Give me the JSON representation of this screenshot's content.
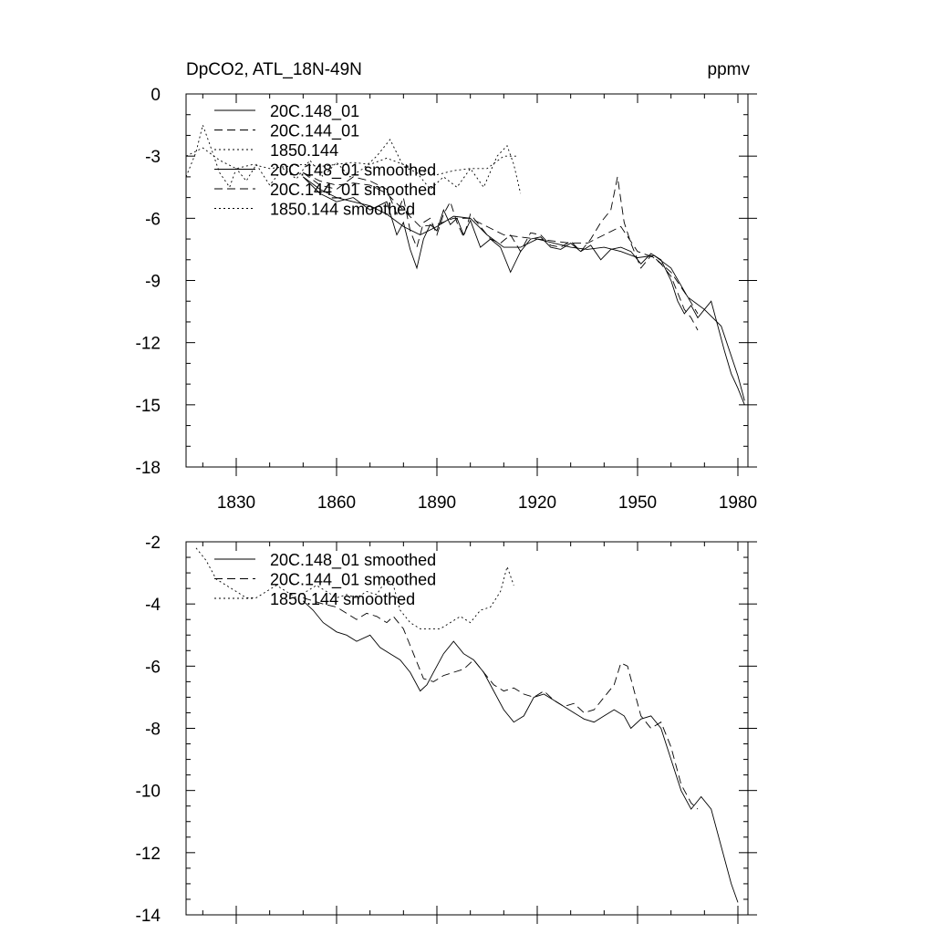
{
  "chart_data": [
    {
      "type": "line",
      "title": "DpCO2, ATL_18N-49N",
      "units": "ppmv",
      "xlim": [
        1815,
        1983
      ],
      "ylim": [
        -18,
        0
      ],
      "xticks": [
        1830,
        1860,
        1890,
        1920,
        1950,
        1980
      ],
      "xtick_labels": [
        "1830",
        "1860",
        "1890",
        "1920",
        "1950",
        "1980"
      ],
      "yticks": [
        0,
        -3,
        -6,
        -9,
        -12,
        -15,
        -18
      ],
      "ytick_labels": [
        "0",
        "-3",
        "-6",
        "-9",
        "-12",
        "-15",
        "-18"
      ],
      "legend": [
        "20C.148_01",
        "20C.144_01",
        "1850.144",
        "20C.148_01 smoothed",
        "20C.144_01 smoothed",
        "1850.144 smoothed"
      ],
      "series": [
        {
          "name": "20C.148_01",
          "style": "solid",
          "x": [
            1850,
            1855,
            1860,
            1865,
            1870,
            1875,
            1878,
            1880,
            1882,
            1884,
            1886,
            1888,
            1890,
            1892,
            1894,
            1896,
            1898,
            1900,
            1903,
            1906,
            1909,
            1912,
            1915,
            1918,
            1921,
            1924,
            1927,
            1930,
            1933,
            1936,
            1939,
            1942,
            1945,
            1948,
            1951,
            1954,
            1957,
            1960,
            1962,
            1964,
            1966,
            1968,
            1970,
            1972,
            1974,
            1976,
            1978,
            1980,
            1982
          ],
          "y": [
            -4.0,
            -4.8,
            -5.2,
            -5.0,
            -5.6,
            -5.2,
            -6.8,
            -6.2,
            -7.5,
            -8.4,
            -7.0,
            -6.3,
            -6.6,
            -5.6,
            -6.3,
            -6.0,
            -6.8,
            -6.1,
            -7.4,
            -7.0,
            -7.4,
            -8.6,
            -7.6,
            -7.0,
            -6.9,
            -7.4,
            -7.5,
            -7.2,
            -7.6,
            -7.3,
            -8.0,
            -7.5,
            -7.4,
            -7.6,
            -8.2,
            -7.7,
            -8.0,
            -9.0,
            -10.0,
            -10.6,
            -10.2,
            -10.8,
            -10.4,
            -10.0,
            -11.2,
            -12.4,
            -13.5,
            -14.2,
            -15.0
          ]
        },
        {
          "name": "20C.144_01",
          "style": "dash",
          "x": [
            1850,
            1855,
            1860,
            1865,
            1870,
            1875,
            1878,
            1880,
            1882,
            1884,
            1886,
            1888,
            1890,
            1892,
            1894,
            1896,
            1898,
            1900,
            1903,
            1906,
            1909,
            1912,
            1915,
            1918,
            1921,
            1924,
            1927,
            1930,
            1933,
            1936,
            1939,
            1942,
            1944,
            1946,
            1948,
            1951,
            1954,
            1957,
            1960,
            1962,
            1964,
            1966,
            1968
          ],
          "y": [
            -3.8,
            -4.4,
            -4.6,
            -4.0,
            -4.2,
            -4.6,
            -5.8,
            -5.0,
            -6.6,
            -7.4,
            -6.2,
            -6.0,
            -6.8,
            -5.8,
            -5.2,
            -6.2,
            -6.9,
            -5.8,
            -6.4,
            -7.0,
            -7.2,
            -6.8,
            -7.6,
            -6.7,
            -6.8,
            -7.3,
            -7.4,
            -7.1,
            -7.6,
            -7.0,
            -6.2,
            -5.6,
            -4.0,
            -6.2,
            -7.2,
            -8.4,
            -7.8,
            -8.2,
            -8.8,
            -9.6,
            -10.4,
            -10.8,
            -11.4
          ]
        },
        {
          "name": "1850.144",
          "style": "dot",
          "x": [
            1815,
            1818,
            1820,
            1822,
            1825,
            1828,
            1830,
            1833,
            1836,
            1840,
            1844,
            1848,
            1852,
            1856,
            1860,
            1864,
            1868,
            1872,
            1876,
            1880,
            1884,
            1888,
            1892,
            1896,
            1900,
            1904,
            1908,
            1911,
            1913,
            1915
          ],
          "y": [
            -4.0,
            -2.8,
            -1.5,
            -2.4,
            -3.8,
            -4.5,
            -3.6,
            -4.2,
            -3.4,
            -4.4,
            -3.6,
            -4.1,
            -3.2,
            -4.0,
            -3.3,
            -4.0,
            -3.6,
            -3.0,
            -2.2,
            -3.5,
            -3.8,
            -4.6,
            -4.0,
            -4.5,
            -3.6,
            -4.5,
            -3.0,
            -2.5,
            -3.4,
            -4.8
          ]
        },
        {
          "name": "20C.148_01 smoothed",
          "style": "solid",
          "x": [
            1850,
            1855,
            1860,
            1865,
            1870,
            1875,
            1880,
            1885,
            1890,
            1895,
            1900,
            1905,
            1910,
            1915,
            1920,
            1925,
            1930,
            1935,
            1940,
            1945,
            1950,
            1955,
            1960,
            1965,
            1970,
            1975,
            1980,
            1982
          ],
          "y": [
            -4.0,
            -4.6,
            -5.0,
            -5.2,
            -5.4,
            -5.8,
            -6.4,
            -6.8,
            -6.4,
            -5.9,
            -6.0,
            -6.8,
            -7.4,
            -7.4,
            -7.0,
            -7.2,
            -7.4,
            -7.5,
            -7.4,
            -7.6,
            -7.9,
            -7.8,
            -8.4,
            -9.8,
            -10.4,
            -11.2,
            -13.6,
            -14.8
          ]
        },
        {
          "name": "20C.144_01 smoothed",
          "style": "dash",
          "x": [
            1850,
            1855,
            1860,
            1865,
            1870,
            1875,
            1880,
            1885,
            1890,
            1895,
            1900,
            1905,
            1910,
            1915,
            1920,
            1925,
            1930,
            1935,
            1940,
            1945,
            1950,
            1955,
            1960,
            1965,
            1968
          ],
          "y": [
            -3.8,
            -4.2,
            -4.4,
            -4.3,
            -4.4,
            -4.8,
            -5.6,
            -6.4,
            -6.3,
            -6.0,
            -6.0,
            -6.4,
            -6.8,
            -6.9,
            -7.0,
            -7.1,
            -7.2,
            -7.2,
            -6.8,
            -6.4,
            -7.6,
            -7.9,
            -8.6,
            -9.8,
            -10.6
          ]
        },
        {
          "name": "1850.144 smoothed",
          "style": "dot",
          "x": [
            1815,
            1820,
            1825,
            1830,
            1835,
            1840,
            1845,
            1850,
            1855,
            1860,
            1865,
            1870,
            1875,
            1880,
            1885,
            1890,
            1895,
            1900,
            1905,
            1910,
            1914
          ],
          "y": [
            -3.0,
            -2.6,
            -3.2,
            -3.6,
            -3.4,
            -3.6,
            -3.5,
            -3.4,
            -3.5,
            -3.4,
            -3.3,
            -3.4,
            -3.1,
            -3.4,
            -3.7,
            -3.9,
            -3.7,
            -3.6,
            -3.6,
            -3.0,
            -3.0
          ]
        }
      ]
    },
    {
      "type": "line",
      "xlim": [
        1815,
        1983
      ],
      "ylim": [
        -14,
        -2
      ],
      "xticks": [
        1830,
        1860,
        1890,
        1920,
        1950,
        1980
      ],
      "yticks": [
        -2,
        -4,
        -6,
        -8,
        -10,
        -12,
        -14
      ],
      "ytick_labels": [
        "-2",
        "-4",
        "-6",
        "-8",
        "-10",
        "-12",
        "-14"
      ],
      "legend": [
        "20C.148_01 smoothed",
        "20C.144_01 smoothed",
        "1850.144 smoothed"
      ],
      "series": [
        {
          "name": "20C.148_01 smoothed",
          "style": "solid",
          "x": [
            1850,
            1853,
            1856,
            1860,
            1863,
            1866,
            1870,
            1873,
            1876,
            1879,
            1882,
            1885,
            1887,
            1889,
            1892,
            1895,
            1898,
            1901,
            1904,
            1907,
            1910,
            1913,
            1916,
            1919,
            1922,
            1925,
            1928,
            1931,
            1934,
            1937,
            1940,
            1943,
            1946,
            1948,
            1951,
            1954,
            1957,
            1960,
            1963,
            1966,
            1969,
            1972,
            1975,
            1978,
            1980
          ],
          "y": [
            -3.9,
            -4.2,
            -4.6,
            -4.9,
            -5.0,
            -5.2,
            -5.0,
            -5.4,
            -5.6,
            -5.8,
            -6.2,
            -6.8,
            -6.6,
            -6.2,
            -5.6,
            -5.2,
            -5.6,
            -5.8,
            -6.2,
            -6.8,
            -7.4,
            -7.8,
            -7.6,
            -7.0,
            -6.9,
            -7.1,
            -7.3,
            -7.5,
            -7.7,
            -7.8,
            -7.6,
            -7.4,
            -7.6,
            -8.0,
            -7.7,
            -7.6,
            -8.0,
            -9.0,
            -10.0,
            -10.6,
            -10.2,
            -10.6,
            -11.8,
            -13.0,
            -13.6
          ]
        },
        {
          "name": "20C.144_01 smoothed",
          "style": "dash",
          "x": [
            1850,
            1853,
            1856,
            1860,
            1863,
            1866,
            1869,
            1872,
            1875,
            1877,
            1880,
            1883,
            1886,
            1889,
            1892,
            1895,
            1898,
            1901,
            1904,
            1907,
            1910,
            1913,
            1916,
            1919,
            1922,
            1925,
            1928,
            1931,
            1934,
            1937,
            1940,
            1943,
            1945,
            1947,
            1949,
            1951,
            1954,
            1957,
            1960,
            1963,
            1966,
            1968
          ],
          "y": [
            -3.8,
            -3.9,
            -4.0,
            -4.1,
            -4.3,
            -4.5,
            -4.3,
            -4.4,
            -4.6,
            -4.4,
            -4.8,
            -5.6,
            -6.4,
            -6.5,
            -6.3,
            -6.2,
            -6.1,
            -5.8,
            -6.2,
            -6.6,
            -6.8,
            -6.7,
            -6.9,
            -7.0,
            -6.8,
            -7.1,
            -7.3,
            -7.2,
            -7.5,
            -7.4,
            -7.0,
            -6.6,
            -5.9,
            -6.0,
            -6.8,
            -7.6,
            -8.0,
            -7.8,
            -8.6,
            -9.8,
            -10.4,
            -10.6
          ]
        },
        {
          "name": "1850.144 smoothed",
          "style": "dot",
          "x": [
            1818,
            1821,
            1824,
            1827,
            1830,
            1833,
            1836,
            1839,
            1842,
            1845,
            1848,
            1851,
            1854,
            1857,
            1860,
            1863,
            1866,
            1869,
            1872,
            1875,
            1877,
            1879,
            1882,
            1885,
            1888,
            1891,
            1894,
            1897,
            1900,
            1903,
            1906,
            1909,
            1911,
            1913
          ],
          "y": [
            -2.2,
            -2.6,
            -3.2,
            -3.4,
            -3.6,
            -3.8,
            -3.8,
            -3.6,
            -3.4,
            -3.6,
            -3.8,
            -3.6,
            -3.4,
            -3.6,
            -3.8,
            -3.7,
            -3.8,
            -3.6,
            -3.7,
            -3.2,
            -3.4,
            -4.2,
            -4.6,
            -4.8,
            -4.8,
            -4.8,
            -4.6,
            -4.4,
            -4.6,
            -4.2,
            -4.1,
            -3.6,
            -2.8,
            -3.4
          ]
        }
      ]
    }
  ]
}
